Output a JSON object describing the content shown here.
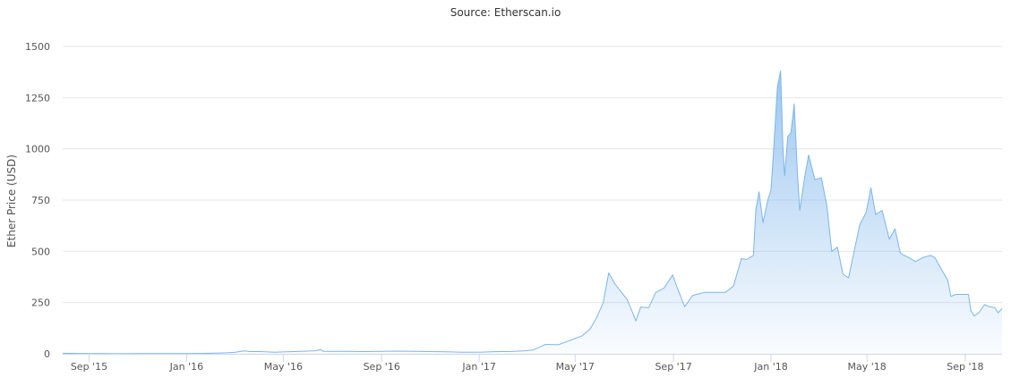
{
  "chart_data": {
    "type": "area",
    "title": "Source: Etherscan.io",
    "xlabel": "",
    "ylabel": "Ether Price (USD)",
    "ylim": [
      0,
      1500
    ],
    "yticks": [
      0,
      250,
      500,
      750,
      1000,
      1250,
      1500
    ],
    "xlim": [
      "2015-07-30",
      "2018-10-17"
    ],
    "xticks": [
      {
        "date": "2015-09-01",
        "label": "Sep '15"
      },
      {
        "date": "2016-01-01",
        "label": "Jan '16"
      },
      {
        "date": "2016-05-01",
        "label": "May '16"
      },
      {
        "date": "2016-09-01",
        "label": "Sep '16"
      },
      {
        "date": "2017-01-01",
        "label": "Jan '17"
      },
      {
        "date": "2017-05-01",
        "label": "May '17"
      },
      {
        "date": "2017-09-01",
        "label": "Sep '17"
      },
      {
        "date": "2018-01-01",
        "label": "Jan '18"
      },
      {
        "date": "2018-05-01",
        "label": "May '18"
      },
      {
        "date": "2018-09-01",
        "label": "Sep '18"
      }
    ],
    "grid": true,
    "legend": "none",
    "colors": {
      "line": "#7cb5ec",
      "fill_top": "#7cb5ec",
      "grid": "#e6e6e6",
      "axis": "#ccd6eb"
    },
    "series": [
      {
        "points": [
          [
            "2015-07-30",
            2.8
          ],
          [
            "2015-08-15",
            1.6
          ],
          [
            "2015-09-01",
            1.3
          ],
          [
            "2015-09-20",
            0.9
          ],
          [
            "2015-10-10",
            0.6
          ],
          [
            "2015-11-01",
            1.0
          ],
          [
            "2015-11-20",
            0.9
          ],
          [
            "2015-12-10",
            0.9
          ],
          [
            "2016-01-01",
            0.95
          ],
          [
            "2016-01-20",
            1.6
          ],
          [
            "2016-02-10",
            4
          ],
          [
            "2016-02-20",
            5
          ],
          [
            "2016-03-01",
            7
          ],
          [
            "2016-03-13",
            14
          ],
          [
            "2016-03-20",
            11
          ],
          [
            "2016-04-01",
            11
          ],
          [
            "2016-04-20",
            8
          ],
          [
            "2016-05-01",
            9
          ],
          [
            "2016-05-15",
            11
          ],
          [
            "2016-05-31",
            13
          ],
          [
            "2016-06-10",
            15
          ],
          [
            "2016-06-17",
            20
          ],
          [
            "2016-06-20",
            12
          ],
          [
            "2016-07-01",
            12
          ],
          [
            "2016-07-20",
            12
          ],
          [
            "2016-08-10",
            11
          ],
          [
            "2016-09-01",
            12
          ],
          [
            "2016-09-20",
            13
          ],
          [
            "2016-10-10",
            12
          ],
          [
            "2016-11-01",
            11
          ],
          [
            "2016-11-20",
            9.5
          ],
          [
            "2016-12-10",
            8
          ],
          [
            "2017-01-01",
            8
          ],
          [
            "2017-01-20",
            10.5
          ],
          [
            "2017-02-10",
            11.5
          ],
          [
            "2017-02-28",
            15
          ],
          [
            "2017-03-10",
            19
          ],
          [
            "2017-03-18",
            33
          ],
          [
            "2017-03-25",
            46
          ],
          [
            "2017-04-10",
            44
          ],
          [
            "2017-04-28",
            70
          ],
          [
            "2017-05-10",
            88
          ],
          [
            "2017-05-20",
            122
          ],
          [
            "2017-05-28",
            178
          ],
          [
            "2017-06-05",
            248
          ],
          [
            "2017-06-12",
            395
          ],
          [
            "2017-06-20",
            340
          ],
          [
            "2017-06-28",
            300
          ],
          [
            "2017-07-05",
            265
          ],
          [
            "2017-07-12",
            200
          ],
          [
            "2017-07-16",
            160
          ],
          [
            "2017-07-22",
            228
          ],
          [
            "2017-08-01",
            225
          ],
          [
            "2017-08-10",
            300
          ],
          [
            "2017-08-20",
            320
          ],
          [
            "2017-08-31",
            385
          ],
          [
            "2017-09-05",
            330
          ],
          [
            "2017-09-15",
            230
          ],
          [
            "2017-09-25",
            285
          ],
          [
            "2017-10-10",
            300
          ],
          [
            "2017-10-25",
            300
          ],
          [
            "2017-11-05",
            300
          ],
          [
            "2017-11-15",
            330
          ],
          [
            "2017-11-25",
            465
          ],
          [
            "2017-12-01",
            460
          ],
          [
            "2017-12-10",
            480
          ],
          [
            "2017-12-13",
            700
          ],
          [
            "2017-12-17",
            790
          ],
          [
            "2017-12-22",
            640
          ],
          [
            "2017-12-28",
            750
          ],
          [
            "2018-01-01",
            800
          ],
          [
            "2018-01-04",
            980
          ],
          [
            "2018-01-09",
            1300
          ],
          [
            "2018-01-13",
            1380
          ],
          [
            "2018-01-16",
            1000
          ],
          [
            "2018-01-18",
            870
          ],
          [
            "2018-01-22",
            1060
          ],
          [
            "2018-01-26",
            1080
          ],
          [
            "2018-01-30",
            1220
          ],
          [
            "2018-02-03",
            880
          ],
          [
            "2018-02-06",
            700
          ],
          [
            "2018-02-12",
            860
          ],
          [
            "2018-02-17",
            970
          ],
          [
            "2018-02-25",
            850
          ],
          [
            "2018-03-05",
            860
          ],
          [
            "2018-03-12",
            720
          ],
          [
            "2018-03-18",
            500
          ],
          [
            "2018-03-25",
            520
          ],
          [
            "2018-04-01",
            390
          ],
          [
            "2018-04-08",
            370
          ],
          [
            "2018-04-15",
            500
          ],
          [
            "2018-04-22",
            630
          ],
          [
            "2018-04-30",
            690
          ],
          [
            "2018-05-06",
            810
          ],
          [
            "2018-05-12",
            680
          ],
          [
            "2018-05-20",
            700
          ],
          [
            "2018-05-29",
            560
          ],
          [
            "2018-06-05",
            610
          ],
          [
            "2018-06-12",
            490
          ],
          [
            "2018-06-22",
            470
          ],
          [
            "2018-07-01",
            450
          ],
          [
            "2018-07-10",
            470
          ],
          [
            "2018-07-20",
            480
          ],
          [
            "2018-07-25",
            470
          ],
          [
            "2018-08-01",
            420
          ],
          [
            "2018-08-10",
            360
          ],
          [
            "2018-08-14",
            280
          ],
          [
            "2018-08-20",
            290
          ],
          [
            "2018-08-28",
            290
          ],
          [
            "2018-09-05",
            290
          ],
          [
            "2018-09-08",
            210
          ],
          [
            "2018-09-12",
            185
          ],
          [
            "2018-09-18",
            200
          ],
          [
            "2018-09-25",
            240
          ],
          [
            "2018-10-01",
            230
          ],
          [
            "2018-10-08",
            225
          ],
          [
            "2018-10-12",
            200
          ],
          [
            "2018-10-17",
            220
          ]
        ]
      }
    ]
  }
}
